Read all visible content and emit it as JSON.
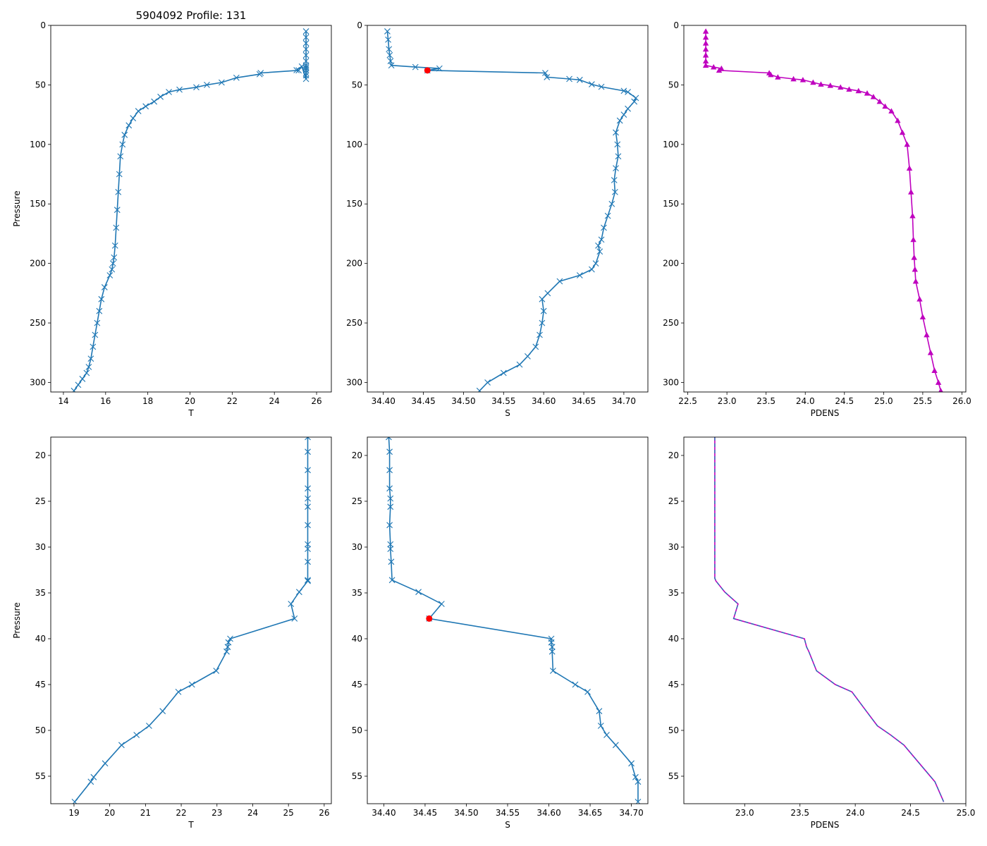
{
  "figure_title": "5904092 Profile: 131",
  "colors": {
    "line": "#1f77b4",
    "density": "#bf00bf",
    "dashed": "#1f77b4",
    "marker_red": "#ff0000"
  },
  "chart_data": [
    {
      "type": "line",
      "panel": "top-left",
      "xlabel": "T",
      "ylabel": "Pressure",
      "xlim": [
        13.4,
        26.7
      ],
      "ylim": [
        308,
        0
      ],
      "xticks": [
        14,
        16,
        18,
        20,
        22,
        24,
        26
      ],
      "yticks": [
        0,
        50,
        100,
        150,
        200,
        250,
        300
      ],
      "tick_decimals": 0,
      "marker": "x",
      "x": [
        25.5,
        25.5,
        25.5,
        25.5,
        25.5,
        25.5,
        25.5,
        25.5,
        25.5,
        25.5,
        25.5,
        25.5,
        25.5,
        25.3,
        25.05,
        25.15,
        23.35,
        23.3,
        22.2,
        21.5,
        20.8,
        20.3,
        19.5,
        19.0,
        18.6,
        18.3,
        17.9,
        17.55,
        17.3,
        17.1,
        16.9,
        16.8,
        16.7,
        16.65,
        16.6,
        16.55,
        16.5,
        16.45,
        16.4,
        16.35,
        16.3,
        16.2,
        15.95,
        15.8,
        15.7,
        15.6,
        15.5,
        15.4,
        15.3,
        15.2,
        15.1,
        14.9,
        14.7,
        14.5
      ],
      "y": [
        5,
        10,
        15,
        20,
        25,
        30,
        33.6,
        35,
        36.2,
        37.8,
        40,
        42,
        45,
        34.5,
        37.6,
        37.8,
        40,
        41,
        44,
        48,
        50,
        52,
        54,
        56,
        60,
        64,
        68,
        72,
        78,
        84,
        92,
        100,
        110,
        125,
        140,
        155,
        170,
        185,
        195,
        200,
        205,
        210,
        220,
        230,
        240,
        250,
        260,
        270,
        280,
        287,
        292,
        297,
        302,
        307
      ]
    },
    {
      "type": "line",
      "panel": "top-middle",
      "xlabel": "S",
      "ylabel": "",
      "xlim": [
        34.38,
        34.73
      ],
      "ylim": [
        308,
        0
      ],
      "xticks": [
        34.4,
        34.45,
        34.5,
        34.55,
        34.6,
        34.65,
        34.7
      ],
      "yticks": [
        0,
        50,
        100,
        150,
        200,
        250,
        300
      ],
      "tick_decimals": 2,
      "marker": "x",
      "x": [
        34.405,
        34.406,
        34.407,
        34.408,
        34.409,
        34.41,
        34.44,
        34.47,
        34.455,
        34.602,
        34.604,
        34.632,
        34.645,
        34.66,
        34.672,
        34.7,
        34.705,
        34.715,
        34.713,
        34.705,
        34.7,
        34.695,
        34.69,
        34.692,
        34.693,
        34.69,
        34.688,
        34.689,
        34.685,
        34.68,
        34.675,
        34.672,
        34.668,
        34.67,
        34.665,
        34.66,
        34.645,
        34.62,
        34.605,
        34.598,
        34.6,
        34.598,
        34.595,
        34.59,
        34.58,
        34.57,
        34.55,
        34.53,
        34.52
      ],
      "y": [
        5,
        12,
        20,
        25,
        30,
        33.6,
        35,
        36.2,
        37.8,
        40,
        43.5,
        45,
        45.8,
        49.5,
        51.6,
        55,
        56,
        61,
        64,
        70,
        75,
        80,
        90,
        100,
        110,
        120,
        130,
        140,
        150,
        160,
        170,
        180,
        185,
        190,
        200,
        205,
        210,
        215,
        225,
        230,
        240,
        250,
        260,
        270,
        278,
        285,
        292,
        300,
        307
      ],
      "highlight_point": {
        "x": 34.455,
        "y": 37.8
      }
    },
    {
      "type": "line",
      "panel": "top-right",
      "xlabel": "PDENS",
      "ylabel": "",
      "xlim": [
        22.45,
        26.05
      ],
      "ylim": [
        308,
        0
      ],
      "xticks": [
        22.5,
        23.0,
        23.5,
        24.0,
        24.5,
        25.0,
        25.5,
        26.0
      ],
      "yticks": [
        0,
        50,
        100,
        150,
        200,
        250,
        300
      ],
      "tick_decimals": 1,
      "marker": "triangle",
      "x": [
        22.73,
        22.73,
        22.73,
        22.73,
        22.73,
        22.73,
        22.73,
        22.83,
        22.93,
        22.9,
        23.54,
        23.56,
        23.65,
        23.85,
        23.97,
        24.1,
        24.2,
        24.32,
        24.45,
        24.56,
        24.68,
        24.79,
        24.87,
        24.95,
        25.02,
        25.1,
        25.18,
        25.24,
        25.3,
        25.33,
        25.35,
        25.37,
        25.38,
        25.39,
        25.4,
        25.41,
        25.46,
        25.5,
        25.55,
        25.6,
        25.65,
        25.7,
        25.73
      ],
      "y": [
        5,
        10,
        15,
        20,
        25,
        30,
        33.6,
        35,
        36.2,
        37.8,
        40,
        41.5,
        43.5,
        45,
        45.8,
        47.9,
        49.5,
        50.5,
        52,
        53.7,
        55,
        57,
        60,
        64,
        68,
        72,
        80,
        90,
        100,
        120,
        140,
        160,
        180,
        195,
        205,
        215,
        230,
        245,
        260,
        275,
        290,
        300,
        307
      ]
    },
    {
      "type": "line",
      "panel": "bottom-left",
      "xlabel": "T",
      "ylabel": "Pressure",
      "xlim": [
        18.35,
        26.2
      ],
      "ylim": [
        58,
        18
      ],
      "xticks": [
        19,
        20,
        21,
        22,
        23,
        24,
        25,
        26
      ],
      "yticks": [
        20,
        25,
        30,
        35,
        40,
        45,
        50,
        55
      ],
      "tick_decimals": 0,
      "marker": "x",
      "x": [
        25.54,
        25.54,
        25.54,
        25.54,
        25.54,
        25.54,
        25.54,
        25.54,
        25.54,
        25.54,
        25.54,
        25.54,
        25.3,
        25.07,
        25.17,
        23.37,
        23.32,
        23.3,
        23.27,
        22.98,
        22.3,
        21.92,
        21.48,
        21.1,
        20.75,
        20.33,
        19.87,
        19.55,
        19.47,
        19.02
      ],
      "y": [
        18,
        19.6,
        21.6,
        23.6,
        24.7,
        25.6,
        27.6,
        29.7,
        30.2,
        31.6,
        33.6,
        33.7,
        34.9,
        36.2,
        37.8,
        40.0,
        40.4,
        40.9,
        41.4,
        43.5,
        45.0,
        45.8,
        47.9,
        49.5,
        50.5,
        51.6,
        53.6,
        55.1,
        55.6,
        57.8
      ]
    },
    {
      "type": "line",
      "panel": "bottom-middle",
      "xlabel": "S",
      "ylabel": "",
      "xlim": [
        34.38,
        34.72
      ],
      "ylim": [
        58,
        18
      ],
      "xticks": [
        34.4,
        34.45,
        34.5,
        34.55,
        34.6,
        34.65,
        34.7
      ],
      "yticks": [
        20,
        25,
        30,
        35,
        40,
        45,
        50,
        55
      ],
      "tick_decimals": 2,
      "marker": "x",
      "x": [
        34.406,
        34.407,
        34.407,
        34.407,
        34.408,
        34.408,
        34.407,
        34.408,
        34.408,
        34.409,
        34.41,
        34.442,
        34.47,
        34.455,
        34.603,
        34.603,
        34.604,
        34.604,
        34.605,
        34.632,
        34.647,
        34.661,
        34.663,
        34.67,
        34.681,
        34.7,
        34.705,
        34.708,
        34.708
      ],
      "y": [
        18,
        19.6,
        21.6,
        23.6,
        24.7,
        25.6,
        27.6,
        29.7,
        30.2,
        31.6,
        33.6,
        34.9,
        36.2,
        37.8,
        40.0,
        40.4,
        40.9,
        41.4,
        43.5,
        45.0,
        45.8,
        47.9,
        49.5,
        50.5,
        51.6,
        53.6,
        55.1,
        55.6,
        57.8
      ],
      "highlight_point": {
        "x": 34.455,
        "y": 37.8
      }
    },
    {
      "type": "line",
      "panel": "bottom-right",
      "xlabel": "PDENS",
      "ylabel": "",
      "xlim": [
        22.45,
        25.0
      ],
      "ylim": [
        58,
        18
      ],
      "xticks": [
        23.0,
        23.5,
        24.0,
        24.5,
        25.0
      ],
      "yticks": [
        20,
        25,
        30,
        35,
        40,
        45,
        50,
        55
      ],
      "tick_decimals": 1,
      "marker": "none",
      "dashed_overlay": true,
      "x": [
        22.73,
        22.73,
        22.73,
        22.73,
        22.73,
        22.73,
        22.73,
        22.73,
        22.73,
        22.74,
        22.82,
        22.94,
        22.9,
        23.54,
        23.56,
        23.58,
        23.65,
        23.82,
        23.97,
        24.1,
        24.2,
        24.32,
        24.44,
        24.58,
        24.72,
        24.8
      ],
      "y": [
        18,
        21.6,
        24.7,
        27.6,
        29.7,
        31.6,
        32.5,
        33.0,
        33.4,
        33.7,
        34.9,
        36.2,
        37.8,
        40.0,
        40.9,
        41.4,
        43.5,
        45.0,
        45.8,
        47.9,
        49.5,
        50.5,
        51.6,
        53.6,
        55.6,
        57.8
      ]
    }
  ]
}
